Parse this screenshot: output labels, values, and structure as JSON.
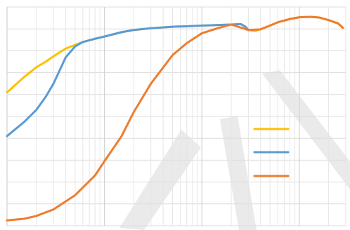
{
  "chart_data": {
    "type": "line",
    "x_scale": "log",
    "xlim": [
      10,
      30000
    ],
    "ylim": [
      0,
      10
    ],
    "grid": true,
    "legend_position": "right",
    "series": [
      {
        "color": "#ffc000",
        "points": [
          [
            10,
            6.1
          ],
          [
            15,
            6.8
          ],
          [
            20,
            7.25
          ],
          [
            25,
            7.5
          ],
          [
            30,
            7.75
          ],
          [
            40,
            8.1
          ],
          [
            60,
            8.4
          ],
          [
            80,
            8.55
          ],
          [
            100,
            8.65
          ],
          [
            150,
            8.85
          ],
          [
            200,
            8.95
          ],
          [
            300,
            9.03
          ],
          [
            500,
            9.1
          ],
          [
            700,
            9.12
          ],
          [
            1000,
            9.15
          ],
          [
            1500,
            9.18
          ],
          [
            2000,
            9.2
          ],
          [
            2500,
            9.22
          ],
          [
            2800,
            9.1
          ],
          [
            3000,
            8.95
          ],
          [
            3500,
            8.9
          ],
          [
            4000,
            8.98
          ],
          [
            5000,
            9.15
          ],
          [
            6000,
            9.3
          ],
          [
            8000,
            9.45
          ],
          [
            10000,
            9.53
          ],
          [
            13000,
            9.55
          ],
          [
            16000,
            9.52
          ],
          [
            20000,
            9.4
          ],
          [
            25000,
            9.25
          ],
          [
            28000,
            9.05
          ]
        ]
      },
      {
        "color": "#5b9bd5",
        "points": [
          [
            10,
            4.1
          ],
          [
            15,
            4.75
          ],
          [
            20,
            5.3
          ],
          [
            25,
            5.9
          ],
          [
            30,
            6.5
          ],
          [
            40,
            7.7
          ],
          [
            50,
            8.2
          ],
          [
            60,
            8.4
          ],
          [
            80,
            8.55
          ],
          [
            100,
            8.65
          ],
          [
            150,
            8.85
          ],
          [
            200,
            8.95
          ],
          [
            300,
            9.03
          ],
          [
            500,
            9.1
          ],
          [
            700,
            9.12
          ],
          [
            1000,
            9.15
          ],
          [
            1500,
            9.18
          ],
          [
            2000,
            9.2
          ],
          [
            2500,
            9.22
          ],
          [
            2800,
            9.1
          ],
          [
            3000,
            8.95
          ]
        ]
      },
      {
        "color": "#ed7d31",
        "points": [
          [
            10,
            0.25
          ],
          [
            15,
            0.32
          ],
          [
            20,
            0.45
          ],
          [
            30,
            0.75
          ],
          [
            50,
            1.4
          ],
          [
            80,
            2.3
          ],
          [
            100,
            2.95
          ],
          [
            150,
            4.1
          ],
          [
            200,
            5.2
          ],
          [
            300,
            6.5
          ],
          [
            500,
            7.8
          ],
          [
            700,
            8.35
          ],
          [
            1000,
            8.8
          ],
          [
            1500,
            9.05
          ],
          [
            2000,
            9.2
          ],
          [
            3000,
            8.95
          ],
          [
            4000,
            8.98
          ],
          [
            5000,
            9.15
          ],
          [
            6000,
            9.3
          ],
          [
            8000,
            9.45
          ],
          [
            10000,
            9.53
          ],
          [
            13000,
            9.55
          ],
          [
            16000,
            9.52
          ],
          [
            20000,
            9.4
          ],
          [
            25000,
            9.25
          ],
          [
            28000,
            9.05
          ]
        ]
      }
    ]
  }
}
